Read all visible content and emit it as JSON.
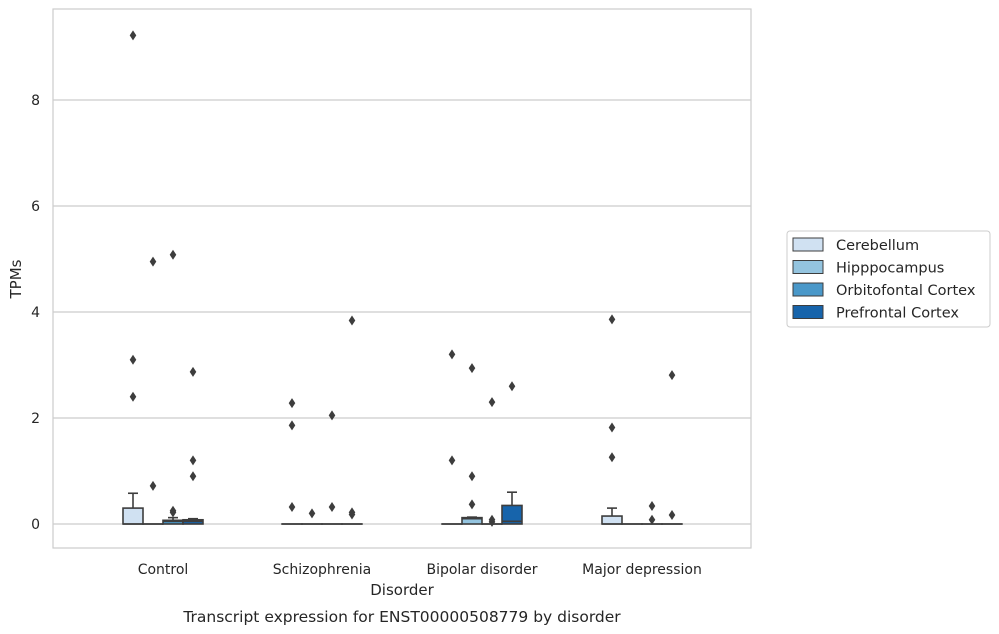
{
  "chart_data": {
    "type": "box",
    "caption": "Transcript expression for ENST00000508779 by disorder",
    "xlabel": "Disorder",
    "ylabel": "TPMs",
    "ylim": [
      -0.45,
      9.7
    ],
    "yticks": [
      0,
      2,
      4,
      6,
      8
    ],
    "grid": true,
    "legend_position": "right",
    "categories": [
      "Control",
      "Schizophrenia",
      "Bipolar disorder",
      "Major depression"
    ],
    "series": [
      {
        "name": "Cerebellum",
        "color": "#d0e1f2"
      },
      {
        "name": "Hipppocampus",
        "color": "#94c4df"
      },
      {
        "name": "Orbitofontal Cortex",
        "color": "#4a98c9"
      },
      {
        "name": "Prefrontal Cortex",
        "color": "#1764ab"
      }
    ],
    "boxes": [
      [
        {
          "q1": 0,
          "median": 0,
          "q3": 0.3,
          "whislo": 0,
          "whishi": 0.58,
          "fliers": [
            9.22,
            3.1,
            2.4
          ]
        },
        {
          "q1": 0,
          "median": 0,
          "q3": 0,
          "whislo": 0,
          "whishi": 0,
          "fliers": [
            4.95,
            0.72
          ]
        },
        {
          "q1": 0,
          "median": 0.05,
          "q3": 0.07,
          "whislo": 0,
          "whishi": 0.12,
          "fliers": [
            5.08,
            0.25,
            0.22
          ]
        },
        {
          "q1": 0,
          "median": 0.05,
          "q3": 0.08,
          "whislo": 0,
          "whishi": 0.1,
          "fliers": [
            2.87,
            1.2,
            0.9
          ]
        }
      ],
      [
        {
          "q1": 0,
          "median": 0,
          "q3": 0,
          "whislo": 0,
          "whishi": 0,
          "fliers": [
            2.28,
            1.86,
            0.32
          ]
        },
        {
          "q1": 0,
          "median": 0,
          "q3": 0,
          "whislo": 0,
          "whishi": 0,
          "fliers": [
            0.2
          ]
        },
        {
          "q1": 0,
          "median": 0,
          "q3": 0,
          "whislo": 0,
          "whishi": 0,
          "fliers": [
            2.05,
            0.32
          ]
        },
        {
          "q1": 0,
          "median": 0,
          "q3": 0,
          "whislo": 0,
          "whishi": 0,
          "fliers": [
            3.84,
            0.22,
            0.18
          ]
        }
      ],
      [
        {
          "q1": 0,
          "median": 0,
          "q3": 0,
          "whislo": 0,
          "whishi": 0,
          "fliers": [
            3.2,
            1.2
          ]
        },
        {
          "q1": 0,
          "median": 0.1,
          "q3": 0.12,
          "whislo": 0,
          "whishi": 0.13,
          "fliers": [
            2.94,
            0.9,
            0.37
          ]
        },
        {
          "q1": 0,
          "median": 0,
          "q3": 0,
          "whislo": 0,
          "whishi": 0,
          "fliers": [
            2.3,
            0.08,
            0.04
          ]
        },
        {
          "q1": 0,
          "median": 0.05,
          "q3": 0.35,
          "whislo": 0,
          "whishi": 0.6,
          "fliers": [
            2.6
          ]
        }
      ],
      [
        {
          "q1": 0,
          "median": 0,
          "q3": 0.15,
          "whislo": 0,
          "whishi": 0.3,
          "fliers": [
            3.86,
            1.82,
            1.26
          ]
        },
        {
          "q1": 0,
          "median": 0,
          "q3": 0,
          "whislo": 0,
          "whishi": 0,
          "fliers": []
        },
        {
          "q1": 0,
          "median": 0,
          "q3": 0,
          "whislo": 0,
          "whishi": 0,
          "fliers": [
            0.34,
            0.08
          ]
        },
        {
          "q1": 0,
          "median": 0,
          "q3": 0,
          "whislo": 0,
          "whishi": 0,
          "fliers": [
            2.81,
            0.17
          ]
        }
      ]
    ]
  }
}
